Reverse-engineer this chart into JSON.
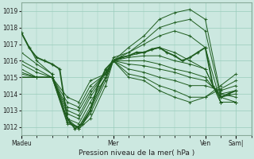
{
  "xlabel": "Pression niveau de la mer( hPa )",
  "bg_color": "#cce8e0",
  "grid_color": "#99ccbb",
  "line_color": "#1e5c1e",
  "ylim": [
    1011.5,
    1019.5
  ],
  "xtick_labels": [
    "Madeu",
    "Mer",
    "Ven",
    "Sam|"
  ],
  "xtick_positions": [
    0,
    48,
    96,
    112
  ],
  "ytick_values": [
    1012,
    1013,
    1014,
    1015,
    1016,
    1017,
    1018,
    1019
  ],
  "total_hours": 120,
  "series": [
    {
      "points": [
        [
          0,
          1017.7
        ],
        [
          8,
          1016.0
        ],
        [
          16,
          1015.2
        ],
        [
          24,
          1012.5
        ],
        [
          30,
          1011.9
        ],
        [
          36,
          1012.5
        ],
        [
          44,
          1014.5
        ],
        [
          48,
          1016.0
        ],
        [
          56,
          1016.8
        ],
        [
          64,
          1017.5
        ],
        [
          72,
          1018.5
        ],
        [
          80,
          1018.9
        ],
        [
          88,
          1019.1
        ],
        [
          96,
          1018.5
        ],
        [
          104,
          1014.0
        ],
        [
          112,
          1013.8
        ]
      ]
    },
    {
      "points": [
        [
          0,
          1016.5
        ],
        [
          8,
          1015.8
        ],
        [
          16,
          1015.2
        ],
        [
          24,
          1012.3
        ],
        [
          30,
          1011.9
        ],
        [
          36,
          1012.8
        ],
        [
          44,
          1014.8
        ],
        [
          48,
          1016.0
        ],
        [
          56,
          1016.5
        ],
        [
          64,
          1017.2
        ],
        [
          72,
          1018.0
        ],
        [
          80,
          1018.3
        ],
        [
          88,
          1018.5
        ],
        [
          96,
          1017.8
        ],
        [
          104,
          1013.8
        ],
        [
          112,
          1013.5
        ]
      ]
    },
    {
      "points": [
        [
          0,
          1016.0
        ],
        [
          8,
          1015.5
        ],
        [
          16,
          1015.0
        ],
        [
          24,
          1012.2
        ],
        [
          30,
          1012.0
        ],
        [
          36,
          1013.0
        ],
        [
          44,
          1015.0
        ],
        [
          48,
          1016.2
        ],
        [
          56,
          1016.5
        ],
        [
          64,
          1017.0
        ],
        [
          72,
          1017.5
        ],
        [
          80,
          1017.8
        ],
        [
          88,
          1017.5
        ],
        [
          96,
          1016.8
        ],
        [
          104,
          1013.5
        ],
        [
          112,
          1013.5
        ]
      ]
    },
    {
      "points": [
        [
          0,
          1015.8
        ],
        [
          8,
          1015.3
        ],
        [
          16,
          1015.0
        ],
        [
          24,
          1012.3
        ],
        [
          30,
          1012.0
        ],
        [
          36,
          1013.2
        ],
        [
          44,
          1015.0
        ],
        [
          48,
          1016.0
        ],
        [
          56,
          1016.3
        ],
        [
          64,
          1016.5
        ],
        [
          72,
          1016.8
        ],
        [
          80,
          1016.5
        ],
        [
          88,
          1016.0
        ],
        [
          96,
          1015.5
        ],
        [
          104,
          1013.5
        ],
        [
          112,
          1013.5
        ]
      ]
    },
    {
      "points": [
        [
          0,
          1015.5
        ],
        [
          8,
          1015.0
        ],
        [
          16,
          1015.0
        ],
        [
          24,
          1012.5
        ],
        [
          30,
          1012.2
        ],
        [
          36,
          1013.5
        ],
        [
          44,
          1015.0
        ],
        [
          48,
          1016.0
        ],
        [
          56,
          1016.2
        ],
        [
          64,
          1016.3
        ],
        [
          72,
          1016.3
        ],
        [
          80,
          1016.0
        ],
        [
          88,
          1015.8
        ],
        [
          96,
          1015.5
        ],
        [
          104,
          1013.5
        ],
        [
          112,
          1013.5
        ]
      ]
    },
    {
      "points": [
        [
          0,
          1015.3
        ],
        [
          8,
          1015.0
        ],
        [
          16,
          1015.0
        ],
        [
          24,
          1012.8
        ],
        [
          30,
          1012.5
        ],
        [
          36,
          1013.8
        ],
        [
          44,
          1015.2
        ],
        [
          48,
          1016.0
        ],
        [
          56,
          1016.0
        ],
        [
          64,
          1016.0
        ],
        [
          72,
          1015.8
        ],
        [
          80,
          1015.5
        ],
        [
          88,
          1015.3
        ],
        [
          96,
          1015.0
        ],
        [
          104,
          1013.8
        ],
        [
          112,
          1014.0
        ]
      ]
    },
    {
      "points": [
        [
          0,
          1015.2
        ],
        [
          8,
          1015.0
        ],
        [
          16,
          1015.0
        ],
        [
          24,
          1013.0
        ],
        [
          30,
          1012.7
        ],
        [
          36,
          1014.0
        ],
        [
          44,
          1015.3
        ],
        [
          48,
          1016.0
        ],
        [
          56,
          1015.8
        ],
        [
          64,
          1015.7
        ],
        [
          72,
          1015.5
        ],
        [
          80,
          1015.3
        ],
        [
          88,
          1015.0
        ],
        [
          96,
          1014.8
        ],
        [
          104,
          1014.0
        ],
        [
          112,
          1014.2
        ]
      ]
    },
    {
      "points": [
        [
          0,
          1015.0
        ],
        [
          8,
          1015.0
        ],
        [
          16,
          1015.0
        ],
        [
          24,
          1013.2
        ],
        [
          30,
          1013.0
        ],
        [
          36,
          1014.2
        ],
        [
          44,
          1015.3
        ],
        [
          48,
          1016.0
        ],
        [
          56,
          1015.5
        ],
        [
          64,
          1015.3
        ],
        [
          72,
          1015.0
        ],
        [
          80,
          1014.8
        ],
        [
          88,
          1014.5
        ],
        [
          96,
          1014.5
        ],
        [
          104,
          1014.2
        ],
        [
          112,
          1014.5
        ]
      ]
    },
    {
      "points": [
        [
          0,
          1015.0
        ],
        [
          8,
          1015.0
        ],
        [
          16,
          1015.0
        ],
        [
          24,
          1013.5
        ],
        [
          30,
          1013.2
        ],
        [
          36,
          1014.5
        ],
        [
          44,
          1015.2
        ],
        [
          48,
          1016.0
        ],
        [
          56,
          1015.2
        ],
        [
          64,
          1015.0
        ],
        [
          72,
          1014.5
        ],
        [
          80,
          1014.2
        ],
        [
          88,
          1013.8
        ],
        [
          96,
          1013.8
        ],
        [
          104,
          1014.3
        ],
        [
          112,
          1014.8
        ]
      ]
    },
    {
      "points": [
        [
          0,
          1015.0
        ],
        [
          8,
          1015.0
        ],
        [
          16,
          1015.0
        ],
        [
          24,
          1013.8
        ],
        [
          30,
          1013.5
        ],
        [
          36,
          1014.8
        ],
        [
          44,
          1015.2
        ],
        [
          48,
          1016.0
        ],
        [
          56,
          1015.0
        ],
        [
          64,
          1014.8
        ],
        [
          72,
          1014.2
        ],
        [
          80,
          1013.8
        ],
        [
          88,
          1013.5
        ],
        [
          96,
          1013.8
        ],
        [
          104,
          1014.5
        ],
        [
          112,
          1015.2
        ]
      ]
    }
  ],
  "main_series": [
    [
      0,
      1017.7
    ],
    [
      4,
      1016.8
    ],
    [
      8,
      1016.2
    ],
    [
      12,
      1016.0
    ],
    [
      16,
      1015.8
    ],
    [
      20,
      1015.5
    ],
    [
      24,
      1012.5
    ],
    [
      28,
      1011.9
    ],
    [
      32,
      1012.2
    ],
    [
      36,
      1013.0
    ],
    [
      40,
      1014.5
    ],
    [
      44,
      1015.5
    ],
    [
      48,
      1016.0
    ],
    [
      52,
      1016.2
    ],
    [
      56,
      1016.3
    ],
    [
      60,
      1016.5
    ],
    [
      64,
      1016.5
    ],
    [
      68,
      1016.7
    ],
    [
      72,
      1016.8
    ],
    [
      76,
      1016.5
    ],
    [
      80,
      1016.3
    ],
    [
      84,
      1016.0
    ],
    [
      88,
      1016.2
    ],
    [
      92,
      1016.5
    ],
    [
      96,
      1016.8
    ],
    [
      100,
      1014.5
    ],
    [
      104,
      1013.8
    ],
    [
      108,
      1014.0
    ],
    [
      112,
      1014.2
    ]
  ]
}
